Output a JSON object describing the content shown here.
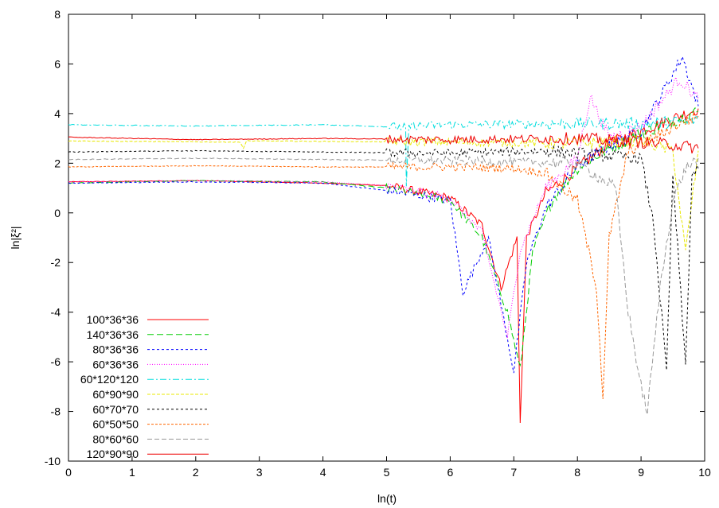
{
  "chart_data": {
    "type": "line",
    "title": "",
    "xlabel": "ln(t)",
    "ylabel": "ln|ξ²|",
    "xlim": [
      0,
      10
    ],
    "ylim": [
      -10,
      8
    ],
    "xticks": [
      "0",
      "1",
      "2",
      "3",
      "4",
      "5",
      "6",
      "7",
      "8",
      "9",
      "10"
    ],
    "yticks": [
      "-10",
      "-8",
      "-6",
      "-4",
      "-2",
      "0",
      "2",
      "4",
      "6",
      "8"
    ],
    "grid": false,
    "legend_position": "bottom-left",
    "series": [
      {
        "name": "100*36*36",
        "color": "#ff0000",
        "dash": "solid",
        "points": [
          [
            0,
            1.25
          ],
          [
            2,
            1.3
          ],
          [
            4,
            1.2
          ],
          [
            5,
            1.1
          ],
          [
            6,
            0.6
          ],
          [
            6.5,
            -0.5
          ],
          [
            6.8,
            -3
          ],
          [
            7.05,
            -1
          ],
          [
            7.1,
            -8.4
          ],
          [
            7.2,
            -1
          ],
          [
            7.5,
            0.8
          ],
          [
            8,
            1.8
          ],
          [
            8.5,
            2.8
          ],
          [
            9,
            3.3
          ],
          [
            9.5,
            3.8
          ],
          [
            9.9,
            4.2
          ]
        ]
      },
      {
        "name": "140*36*36",
        "color": "#00cc00",
        "dash": "8,4",
        "points": [
          [
            0,
            1.2
          ],
          [
            2,
            1.3
          ],
          [
            4,
            1.25
          ],
          [
            5,
            1.0
          ],
          [
            6,
            0.5
          ],
          [
            6.5,
            -1
          ],
          [
            6.9,
            -4
          ],
          [
            7.1,
            -6.3
          ],
          [
            7.3,
            -1.5
          ],
          [
            7.6,
            0.5
          ],
          [
            8,
            1.8
          ],
          [
            8.5,
            2.6
          ],
          [
            9,
            3.2
          ],
          [
            9.5,
            3.7
          ],
          [
            9.9,
            4.1
          ]
        ]
      },
      {
        "name": "80*36*36",
        "color": "#0000ff",
        "dash": "3,3",
        "points": [
          [
            0,
            1.2
          ],
          [
            2,
            1.25
          ],
          [
            4,
            1.2
          ],
          [
            5,
            0.9
          ],
          [
            6,
            0.5
          ],
          [
            6.2,
            -3.2
          ],
          [
            6.6,
            -1
          ],
          [
            7,
            -6.4
          ],
          [
            7.2,
            -2
          ],
          [
            7.5,
            0.2
          ],
          [
            8,
            1.9
          ],
          [
            8.5,
            2.7
          ],
          [
            9,
            3.3
          ],
          [
            9.65,
            6.3
          ],
          [
            9.9,
            4.3
          ]
        ]
      },
      {
        "name": "60*36*36",
        "color": "#ff00ff",
        "dash": "1,2",
        "points": [
          [
            0,
            1.25
          ],
          [
            2,
            1.3
          ],
          [
            4,
            1.25
          ],
          [
            5,
            1.1
          ],
          [
            6,
            0.6
          ],
          [
            6.5,
            -0.8
          ],
          [
            6.9,
            -5
          ],
          [
            7.1,
            -1.5
          ],
          [
            7.5,
            1
          ],
          [
            8,
            2.2
          ],
          [
            8.2,
            4.7
          ],
          [
            8.5,
            3.0
          ],
          [
            9,
            3.5
          ],
          [
            9.6,
            5.4
          ],
          [
            9.9,
            4.6
          ]
        ]
      },
      {
        "name": "60*120*120",
        "color": "#00dddd",
        "dash": "8,3,2,3",
        "points": [
          [
            0,
            3.55
          ],
          [
            2,
            3.5
          ],
          [
            4,
            3.55
          ],
          [
            5.3,
            3.45
          ],
          [
            5.31,
            0.9
          ],
          [
            5.35,
            3.5
          ],
          [
            6,
            3.55
          ],
          [
            8,
            3.6
          ],
          [
            9,
            3.6
          ],
          [
            9.9,
            3.7
          ]
        ]
      },
      {
        "name": "60*90*90",
        "color": "#e8e800",
        "dash": "4,2",
        "points": [
          [
            0,
            2.9
          ],
          [
            2.7,
            2.85
          ],
          [
            2.75,
            2.6
          ],
          [
            2.8,
            2.9
          ],
          [
            6,
            2.85
          ],
          [
            8,
            2.8
          ],
          [
            9,
            2.9
          ],
          [
            9.5,
            2.5
          ],
          [
            9.7,
            -1.6
          ],
          [
            9.9,
            2.5
          ]
        ]
      },
      {
        "name": "60*70*70",
        "color": "#000000",
        "dash": "3,3",
        "points": [
          [
            0,
            2.45
          ],
          [
            2,
            2.5
          ],
          [
            4,
            2.45
          ],
          [
            6,
            2.4
          ],
          [
            7.5,
            2.5
          ],
          [
            8.5,
            2.3
          ],
          [
            9,
            2.2
          ],
          [
            9.2,
            -0.5
          ],
          [
            9.4,
            -6.4
          ],
          [
            9.5,
            1.5
          ],
          [
            9.7,
            -6.2
          ],
          [
            9.8,
            1.5
          ],
          [
            9.9,
            1.8
          ]
        ]
      },
      {
        "name": "60*50*50",
        "color": "#ff6600",
        "dash": "3,2",
        "points": [
          [
            0,
            1.85
          ],
          [
            2,
            1.9
          ],
          [
            4,
            1.85
          ],
          [
            6,
            1.85
          ],
          [
            7,
            1.8
          ],
          [
            7.5,
            1.6
          ],
          [
            8,
            0.5
          ],
          [
            8.3,
            -3
          ],
          [
            8.4,
            -7.4
          ],
          [
            8.5,
            -1
          ],
          [
            8.8,
            2.5
          ],
          [
            9.2,
            3
          ],
          [
            9.6,
            3.6
          ],
          [
            9.9,
            3.9
          ]
        ]
      },
      {
        "name": "80*60*60",
        "color": "#999999",
        "dash": "6,3",
        "points": [
          [
            0,
            2.15
          ],
          [
            2,
            2.2
          ],
          [
            4,
            2.15
          ],
          [
            6,
            2.1
          ],
          [
            7,
            2.05
          ],
          [
            8,
            2.0
          ],
          [
            8.6,
            1.0
          ],
          [
            8.8,
            -4
          ],
          [
            9,
            -7
          ],
          [
            9.1,
            -8.0
          ],
          [
            9.3,
            -3
          ],
          [
            9.5,
            0.5
          ],
          [
            9.7,
            1.8
          ],
          [
            9.9,
            2.2
          ]
        ]
      },
      {
        "name": "120*90*90",
        "color": "#ee0000",
        "dash": "solid",
        "points": [
          [
            0,
            3.05
          ],
          [
            2,
            2.95
          ],
          [
            4,
            3.0
          ],
          [
            6,
            2.95
          ],
          [
            8,
            3.0
          ],
          [
            9,
            2.85
          ],
          [
            9.5,
            2.75
          ],
          [
            9.9,
            2.6
          ]
        ]
      }
    ]
  }
}
